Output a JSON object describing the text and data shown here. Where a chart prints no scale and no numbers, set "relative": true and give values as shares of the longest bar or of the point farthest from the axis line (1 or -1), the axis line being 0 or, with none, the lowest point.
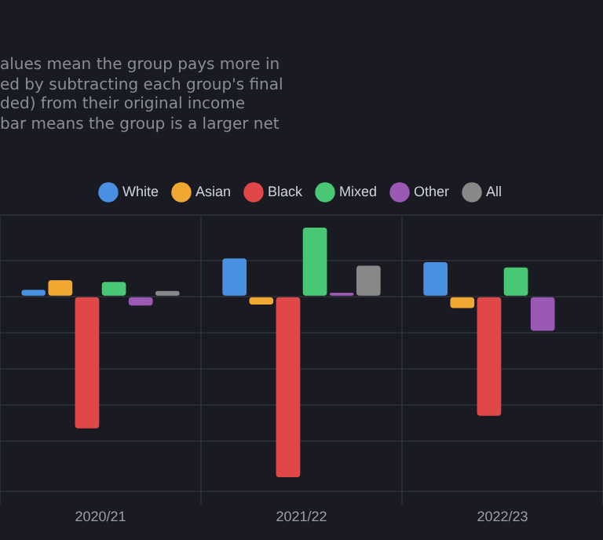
{
  "chart_data": {
    "type": "bar",
    "relative": true,
    "subtitle": "alues mean the group pays more in\ned by subtracting each group's final\nded) from their original income\nbar means the group is a larger net",
    "categories": [
      "2020/21",
      "2021/22",
      "2022/23"
    ],
    "series": [
      {
        "name": "White",
        "color": "#4a90e2",
        "values": [
          0.036,
          0.21,
          0.19
        ]
      },
      {
        "name": "Asian",
        "color": "#f0a830",
        "values": [
          0.09,
          -0.045,
          -0.065
        ]
      },
      {
        "name": "Black",
        "color": "#e04848",
        "values": [
          -0.73,
          -1,
          -0.66
        ]
      },
      {
        "name": "Mixed",
        "color": "#48c774",
        "values": [
          0.08,
          0.38,
          0.16
        ]
      },
      {
        "name": "Other",
        "color": "#9b59b6",
        "values": [
          -0.05,
          0.02,
          -0.19
        ]
      },
      {
        "name": "All",
        "color": "#888888",
        "values": [
          0.03,
          0.17,
          null
        ]
      }
    ],
    "grid": true,
    "legend": "top"
  }
}
